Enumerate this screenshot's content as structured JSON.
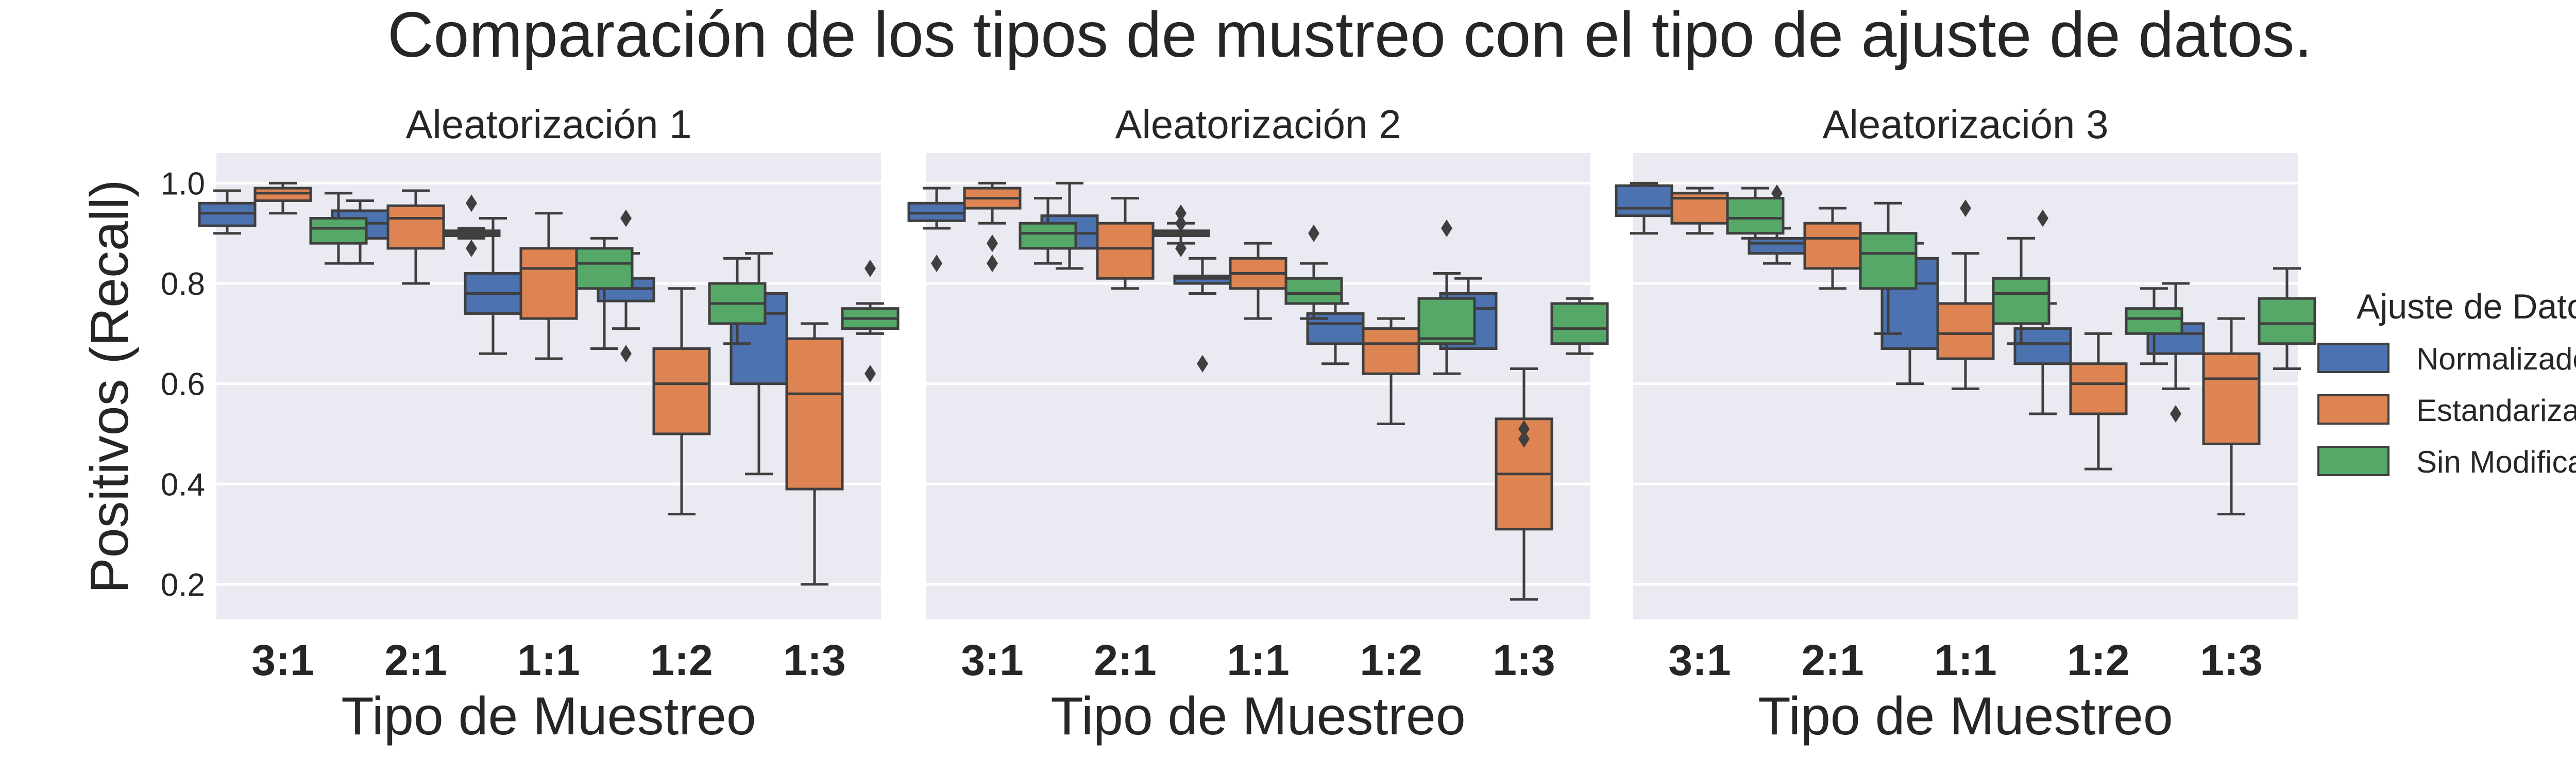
{
  "suptitle": "Comparación de los tipos de mustreo con el tipo de ajuste de datos.",
  "legend": {
    "title": "Ajuste de Datos",
    "entries": [
      {
        "label": "Normalizados",
        "color": "#4c72b0"
      },
      {
        "label": "Estandarizados",
        "color": "#dd8452"
      },
      {
        "label": "Sin Modificación",
        "color": "#55a868"
      }
    ]
  },
  "chart_data": [
    {
      "type": "box",
      "title": "Aleatorización 1",
      "xlabel": "Tipo de Muestreo",
      "ylabel": "Positivos (Recall)",
      "categories": [
        "3:1",
        "2:1",
        "1:1",
        "1:2",
        "1:3"
      ],
      "ylim": [
        0.13,
        1.06
      ],
      "yticks": [
        0.2,
        0.4,
        0.6,
        0.8,
        1.0
      ],
      "grid": true,
      "series": [
        {
          "name": "Normalizados",
          "boxes": [
            {
              "whislo": 0.9,
              "q1": 0.915,
              "med": 0.94,
              "q3": 0.96,
              "whishi": 0.985,
              "fliers": []
            },
            {
              "whislo": 0.84,
              "q1": 0.89,
              "med": 0.92,
              "q3": 0.945,
              "whishi": 0.965,
              "fliers": []
            },
            {
              "whislo": 0.66,
              "q1": 0.74,
              "med": 0.78,
              "q3": 0.82,
              "whishi": 0.93,
              "fliers": []
            },
            {
              "whislo": 0.71,
              "q1": 0.765,
              "med": 0.79,
              "q3": 0.81,
              "whishi": 0.86,
              "fliers": [
                0.93,
                0.66
              ]
            },
            {
              "whislo": 0.42,
              "q1": 0.6,
              "med": 0.74,
              "q3": 0.78,
              "whishi": 0.86,
              "fliers": []
            }
          ]
        },
        {
          "name": "Estandarizados",
          "boxes": [
            {
              "whislo": 0.94,
              "q1": 0.965,
              "med": 0.98,
              "q3": 0.99,
              "whishi": 1.0,
              "fliers": []
            },
            {
              "whislo": 0.8,
              "q1": 0.87,
              "med": 0.93,
              "q3": 0.955,
              "whishi": 0.985,
              "fliers": []
            },
            {
              "whislo": 0.65,
              "q1": 0.73,
              "med": 0.83,
              "q3": 0.87,
              "whishi": 0.94,
              "fliers": []
            },
            {
              "whislo": 0.34,
              "q1": 0.5,
              "med": 0.6,
              "q3": 0.67,
              "whishi": 0.79,
              "fliers": []
            },
            {
              "whislo": 0.2,
              "q1": 0.39,
              "med": 0.58,
              "q3": 0.69,
              "whishi": 0.72,
              "fliers": []
            }
          ]
        },
        {
          "name": "Sin Modificación",
          "boxes": [
            {
              "whislo": 0.84,
              "q1": 0.88,
              "med": 0.91,
              "q3": 0.93,
              "whishi": 0.98,
              "fliers": []
            },
            {
              "whislo": 0.89,
              "q1": 0.895,
              "med": 0.9,
              "q3": 0.905,
              "whishi": 0.91,
              "fliers": [
                0.96,
                0.87
              ]
            },
            {
              "whislo": 0.67,
              "q1": 0.79,
              "med": 0.84,
              "q3": 0.87,
              "whishi": 0.89,
              "fliers": []
            },
            {
              "whislo": 0.68,
              "q1": 0.72,
              "med": 0.76,
              "q3": 0.8,
              "whishi": 0.85,
              "fliers": []
            },
            {
              "whislo": 0.7,
              "q1": 0.71,
              "med": 0.73,
              "q3": 0.75,
              "whishi": 0.76,
              "fliers": [
                0.83,
                0.62
              ]
            }
          ]
        }
      ]
    },
    {
      "type": "box",
      "title": "Aleatorización 2",
      "xlabel": "Tipo de Muestreo",
      "ylabel": "",
      "categories": [
        "3:1",
        "2:1",
        "1:1",
        "1:2",
        "1:3"
      ],
      "ylim": [
        0.13,
        1.06
      ],
      "yticks": [
        0.2,
        0.4,
        0.6,
        0.8,
        1.0
      ],
      "grid": true,
      "series": [
        {
          "name": "Normalizados",
          "boxes": [
            {
              "whislo": 0.91,
              "q1": 0.925,
              "med": 0.94,
              "q3": 0.96,
              "whishi": 0.99,
              "fliers": [
                0.84
              ]
            },
            {
              "whislo": 0.83,
              "q1": 0.87,
              "med": 0.9,
              "q3": 0.935,
              "whishi": 1.0,
              "fliers": []
            },
            {
              "whislo": 0.78,
              "q1": 0.8,
              "med": 0.81,
              "q3": 0.815,
              "whishi": 0.85,
              "fliers": [
                0.64
              ]
            },
            {
              "whislo": 0.64,
              "q1": 0.68,
              "med": 0.72,
              "q3": 0.74,
              "whishi": 0.76,
              "fliers": []
            },
            {
              "whislo": 0.67,
              "q1": 0.67,
              "med": 0.75,
              "q3": 0.78,
              "whishi": 0.81,
              "fliers": []
            }
          ]
        },
        {
          "name": "Estandarizados",
          "boxes": [
            {
              "whislo": 0.92,
              "q1": 0.95,
              "med": 0.97,
              "q3": 0.99,
              "whishi": 1.0,
              "fliers": [
                0.88,
                0.84
              ]
            },
            {
              "whislo": 0.79,
              "q1": 0.81,
              "med": 0.87,
              "q3": 0.92,
              "whishi": 0.97,
              "fliers": []
            },
            {
              "whislo": 0.73,
              "q1": 0.79,
              "med": 0.82,
              "q3": 0.85,
              "whishi": 0.88,
              "fliers": []
            },
            {
              "whislo": 0.52,
              "q1": 0.62,
              "med": 0.68,
              "q3": 0.71,
              "whishi": 0.73,
              "fliers": []
            },
            {
              "whislo": 0.17,
              "q1": 0.31,
              "med": 0.42,
              "q3": 0.53,
              "whishi": 0.63,
              "fliers": [
                0.51,
                0.49
              ]
            }
          ]
        },
        {
          "name": "Sin Modificación",
          "boxes": [
            {
              "whislo": 0.84,
              "q1": 0.87,
              "med": 0.9,
              "q3": 0.92,
              "whishi": 0.97,
              "fliers": []
            },
            {
              "whislo": 0.88,
              "q1": 0.895,
              "med": 0.9,
              "q3": 0.905,
              "whishi": 0.92,
              "fliers": [
                0.94,
                0.92,
                0.87
              ]
            },
            {
              "whislo": 0.73,
              "q1": 0.76,
              "med": 0.78,
              "q3": 0.81,
              "whishi": 0.84,
              "fliers": [
                0.9
              ]
            },
            {
              "whislo": 0.62,
              "q1": 0.68,
              "med": 0.69,
              "q3": 0.77,
              "whishi": 0.82,
              "fliers": [
                0.91
              ]
            },
            {
              "whislo": 0.66,
              "q1": 0.68,
              "med": 0.71,
              "q3": 0.76,
              "whishi": 0.77,
              "fliers": []
            }
          ]
        }
      ]
    },
    {
      "type": "box",
      "title": "Aleatorización 3",
      "xlabel": "Tipo de Muestreo",
      "ylabel": "",
      "categories": [
        "3:1",
        "2:1",
        "1:1",
        "1:2",
        "1:3"
      ],
      "ylim": [
        0.13,
        1.06
      ],
      "yticks": [
        0.2,
        0.4,
        0.6,
        0.8,
        1.0
      ],
      "grid": true,
      "series": [
        {
          "name": "Normalizados",
          "boxes": [
            {
              "whislo": 0.9,
              "q1": 0.935,
              "med": 0.95,
              "q3": 0.995,
              "whishi": 1.0,
              "fliers": []
            },
            {
              "whislo": 0.84,
              "q1": 0.86,
              "med": 0.88,
              "q3": 0.89,
              "whishi": 0.91,
              "fliers": [
                0.98
              ]
            },
            {
              "whislo": 0.6,
              "q1": 0.67,
              "med": 0.8,
              "q3": 0.85,
              "whishi": 0.88,
              "fliers": []
            },
            {
              "whislo": 0.54,
              "q1": 0.64,
              "med": 0.68,
              "q3": 0.71,
              "whishi": 0.76,
              "fliers": [
                0.93
              ]
            },
            {
              "whislo": 0.59,
              "q1": 0.66,
              "med": 0.7,
              "q3": 0.72,
              "whishi": 0.8,
              "fliers": [
                0.54
              ]
            }
          ]
        },
        {
          "name": "Estandarizados",
          "boxes": [
            {
              "whislo": 0.9,
              "q1": 0.92,
              "med": 0.97,
              "q3": 0.98,
              "whishi": 0.99,
              "fliers": []
            },
            {
              "whislo": 0.79,
              "q1": 0.83,
              "med": 0.89,
              "q3": 0.92,
              "whishi": 0.95,
              "fliers": []
            },
            {
              "whislo": 0.59,
              "q1": 0.65,
              "med": 0.7,
              "q3": 0.76,
              "whishi": 0.86,
              "fliers": [
                0.95
              ]
            },
            {
              "whislo": 0.43,
              "q1": 0.54,
              "med": 0.6,
              "q3": 0.64,
              "whishi": 0.7,
              "fliers": []
            },
            {
              "whislo": 0.34,
              "q1": 0.48,
              "med": 0.61,
              "q3": 0.66,
              "whishi": 0.73,
              "fliers": []
            }
          ]
        },
        {
          "name": "Sin Modificación",
          "boxes": [
            {
              "whislo": 0.89,
              "q1": 0.9,
              "med": 0.93,
              "q3": 0.97,
              "whishi": 0.99,
              "fliers": []
            },
            {
              "whislo": 0.7,
              "q1": 0.79,
              "med": 0.86,
              "q3": 0.9,
              "whishi": 0.96,
              "fliers": []
            },
            {
              "whislo": 0.68,
              "q1": 0.72,
              "med": 0.78,
              "q3": 0.81,
              "whishi": 0.89,
              "fliers": []
            },
            {
              "whislo": 0.64,
              "q1": 0.7,
              "med": 0.73,
              "q3": 0.75,
              "whishi": 0.79,
              "fliers": []
            },
            {
              "whislo": 0.63,
              "q1": 0.68,
              "med": 0.72,
              "q3": 0.77,
              "whishi": 0.83,
              "fliers": []
            }
          ]
        }
      ]
    }
  ]
}
